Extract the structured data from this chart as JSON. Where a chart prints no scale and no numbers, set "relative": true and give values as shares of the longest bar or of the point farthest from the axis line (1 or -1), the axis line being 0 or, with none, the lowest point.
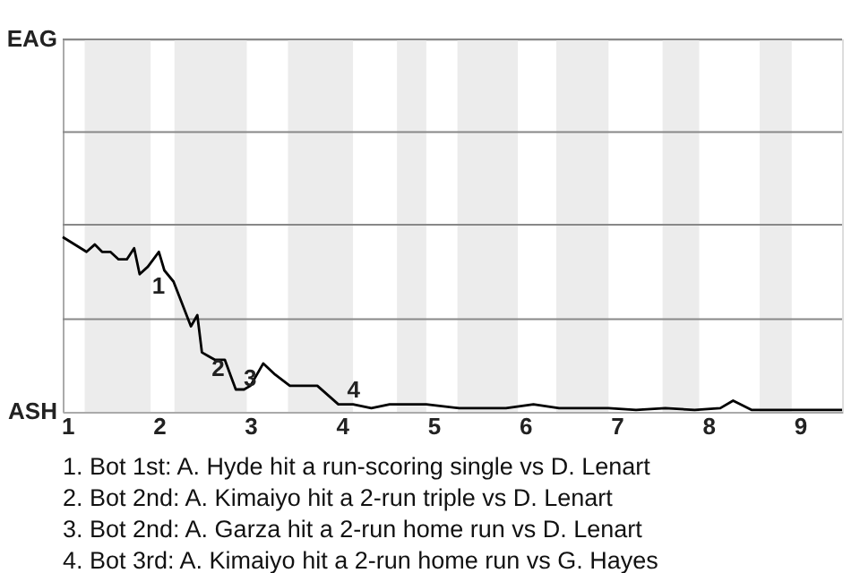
{
  "chart_data": {
    "type": "line",
    "relative": true,
    "x": [
      0.95,
      1.21,
      1.3,
      1.38,
      1.47,
      1.56,
      1.65,
      1.73,
      1.79,
      1.88,
      2.0,
      2.06,
      2.16,
      2.24,
      2.35,
      2.42,
      2.47,
      2.54,
      2.61,
      2.72,
      2.78,
      2.84,
      2.93,
      3.0,
      3.14,
      3.27,
      3.43,
      3.59,
      3.73,
      3.96,
      4.12,
      4.32,
      4.52,
      4.62,
      4.72,
      4.92,
      5.28,
      5.79,
      6.09,
      6.37,
      6.91,
      7.21,
      7.53,
      7.85,
      8.13,
      8.27,
      8.47,
      9.46
    ],
    "series": [
      {
        "color": "#000000",
        "values": [
          1,
          0.915,
          0.957,
          0.915,
          0.915,
          0.872,
          0.872,
          0.936,
          0.787,
          0.83,
          0.915,
          0.809,
          0.745,
          0.638,
          0.489,
          0.553,
          0.34,
          0.319,
          0.298,
          0.298,
          0.213,
          0.128,
          0.128,
          0.149,
          0.277,
          0.213,
          0.149,
          0.149,
          0.149,
          0.043,
          0.043,
          0.021,
          0.043,
          0.043,
          0.043,
          0.043,
          0.021,
          0.021,
          0.043,
          0.021,
          0.021,
          0.011,
          0.021,
          0.011,
          0.021,
          0.064,
          0.011,
          0.011
        ]
      }
    ],
    "xlim": [
      0.95,
      9.46
    ],
    "xticks": [
      1,
      2,
      3,
      4,
      5,
      6,
      7,
      8,
      9
    ],
    "ref_lines": [
      {
        "axis": "y",
        "value": 0.53,
        "color": "#888888"
      },
      {
        "axis": "y",
        "value": 1.07,
        "color": "#888888"
      },
      {
        "axis": "y",
        "value": 1.6,
        "color": "#888888"
      },
      {
        "axis": "y",
        "value": 2.13,
        "color": "#888888"
      }
    ],
    "bands": [
      {
        "axis": "x",
        "from": 1.19,
        "to": 1.91,
        "color": "#ececec"
      },
      {
        "axis": "x",
        "from": 2.17,
        "to": 2.96,
        "color": "#ececec"
      },
      {
        "axis": "x",
        "from": 3.41,
        "to": 4.12,
        "color": "#ececec"
      },
      {
        "axis": "x",
        "from": 4.6,
        "to": 4.92,
        "color": "#ececec"
      },
      {
        "axis": "x",
        "from": 5.26,
        "to": 5.92,
        "color": "#ececec"
      },
      {
        "axis": "x",
        "from": 6.34,
        "to": 6.91,
        "color": "#ececec"
      },
      {
        "axis": "x",
        "from": 7.5,
        "to": 7.9,
        "color": "#ececec"
      },
      {
        "axis": "x",
        "from": 8.56,
        "to": 8.91,
        "color": "#ececec"
      }
    ],
    "annotations": [
      {
        "text": "1",
        "x": 1.86,
        "y": 0.81
      },
      {
        "text": "2",
        "x": 2.51,
        "y": 0.34
      },
      {
        "text": "3",
        "x": 2.86,
        "y": 0.11
      },
      {
        "text": "4",
        "x": 3.99,
        "y": 0.04
      },
      "EAG",
      "ASH",
      "1. Bot 1st: A. Hyde hit a run-scoring single vs D. Lenart",
      "2. Bot 2nd: A. Kimaiyo hit a 2-run triple vs D. Lenart",
      "3. Bot 2nd: A. Garza hit a 2-run home run vs D. Lenart",
      "4. Bot 3rd: A. Kimaiyo hit a 2-run home run vs G. Hayes"
    ]
  }
}
